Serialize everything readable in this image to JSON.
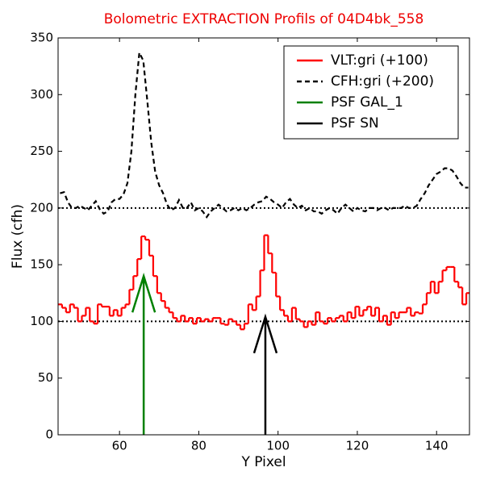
{
  "chart_data": {
    "type": "line",
    "title": "Bolometric EXTRACTION Profils of 04D4bk_558",
    "xlabel": "Y Pixel",
    "ylabel": "Flux (cfh)",
    "xlim": [
      44.5,
      148.3
    ],
    "ylim": [
      0,
      350
    ],
    "xticks": [
      60,
      80,
      100,
      120,
      140
    ],
    "yticks": [
      0,
      50,
      100,
      150,
      200,
      250,
      300,
      350
    ],
    "hlines": [
      100,
      200
    ],
    "legend": "upper right",
    "x": [
      45,
      46,
      47,
      48,
      49,
      50,
      51,
      52,
      53,
      54,
      55,
      56,
      57,
      58,
      59,
      60,
      61,
      62,
      63,
      64,
      65,
      66,
      67,
      68,
      69,
      70,
      71,
      72,
      73,
      74,
      75,
      76,
      77,
      78,
      79,
      80,
      81,
      82,
      83,
      84,
      85,
      86,
      87,
      88,
      89,
      90,
      91,
      92,
      93,
      94,
      95,
      96,
      97,
      98,
      99,
      100,
      101,
      102,
      103,
      104,
      105,
      106,
      107,
      108,
      109,
      110,
      111,
      112,
      113,
      114,
      115,
      116,
      117,
      118,
      119,
      120,
      121,
      122,
      123,
      124,
      125,
      126,
      127,
      128,
      129,
      130,
      131,
      132,
      133,
      134,
      135,
      136,
      137,
      138,
      139,
      140,
      141,
      142,
      143,
      144,
      145,
      146,
      147,
      148
    ],
    "series": [
      {
        "name": "VLT:gri (+100)",
        "color": "#ff0000",
        "style": "steps",
        "values": [
          115,
          112,
          108,
          115,
          112,
          100,
          105,
          112,
          100,
          98,
          115,
          113,
          113,
          105,
          110,
          105,
          112,
          115,
          128,
          140,
          155,
          175,
          172,
          158,
          140,
          125,
          118,
          112,
          108,
          103,
          100,
          105,
          100,
          103,
          98,
          103,
          100,
          102,
          100,
          103,
          103,
          98,
          97,
          102,
          100,
          97,
          93,
          98,
          115,
          110,
          122,
          145,
          176,
          160,
          143,
          122,
          110,
          105,
          100,
          112,
          102,
          100,
          95,
          100,
          97,
          108,
          100,
          98,
          103,
          100,
          103,
          105,
          100,
          108,
          103,
          113,
          105,
          110,
          113,
          105,
          112,
          100,
          105,
          97,
          108,
          103,
          108,
          108,
          112,
          105,
          108,
          107,
          115,
          125,
          135,
          125,
          135,
          145,
          148,
          148,
          135,
          130,
          115,
          125
        ]
      },
      {
        "name": "CFH:gri (+200)",
        "color": "#000000",
        "style": "dashed",
        "values": [
          213,
          214,
          205,
          200,
          200,
          202,
          200,
          198,
          202,
          206,
          199,
          195,
          197,
          205,
          208,
          208,
          212,
          222,
          250,
          300,
          337,
          330,
          295,
          258,
          232,
          220,
          213,
          203,
          198,
          200,
          207,
          200,
          200,
          205,
          198,
          200,
          197,
          192,
          197,
          200,
          203,
          200,
          197,
          198,
          200,
          198,
          200,
          198,
          200,
          203,
          205,
          206,
          210,
          208,
          205,
          203,
          200,
          205,
          208,
          203,
          200,
          202,
          198,
          200,
          197,
          197,
          195,
          198,
          200,
          198,
          195,
          200,
          203,
          200,
          197,
          200,
          198,
          197,
          200,
          200,
          198,
          200,
          200,
          198,
          200,
          200,
          200,
          202,
          200,
          200,
          202,
          208,
          213,
          220,
          225,
          230,
          232,
          235,
          235,
          233,
          228,
          222,
          218,
          218
        ]
      },
      {
        "name": "PSF GAL_1",
        "color": "#008000",
        "style": "arrow",
        "x": [
          66.1,
          66.1
        ],
        "values": [
          0,
          140
        ]
      },
      {
        "name": "PSF SN",
        "color": "#000000",
        "style": "arrow",
        "x": [
          96.8,
          96.8
        ],
        "values": [
          0,
          104
        ]
      }
    ]
  }
}
